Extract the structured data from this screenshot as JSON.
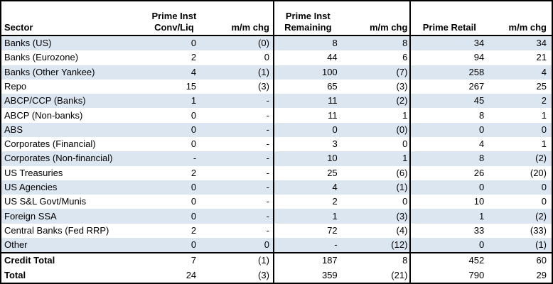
{
  "colors": {
    "stripe": "#DCE6F1",
    "border": "#000000",
    "background": "#FFFFFF"
  },
  "header": {
    "sector": "Sector",
    "group1": {
      "line1": "Prime Inst",
      "line2": "Conv/Liq"
    },
    "mm_chg": "m/m chg",
    "group2": {
      "line1": "Prime Inst",
      "line2": "Remaining"
    },
    "retail": "Prime Retail"
  },
  "chart_data": {
    "type": "table",
    "columns": [
      "Sector",
      "Prime Inst Conv/Liq",
      "m/m chg",
      "Prime Inst Remaining",
      "m/m chg",
      "Prime Retail",
      "m/m chg"
    ],
    "rows": [
      [
        "Banks (US)",
        "0",
        "(0)",
        "8",
        "8",
        "34",
        "34"
      ],
      [
        "Banks (Eurozone)",
        "2",
        "0",
        "44",
        "6",
        "94",
        "21"
      ],
      [
        "Banks (Other Yankee)",
        "4",
        "(1)",
        "100",
        "(7)",
        "258",
        "4"
      ],
      [
        "Repo",
        "15",
        "(3)",
        "65",
        "(3)",
        "267",
        "25"
      ],
      [
        "ABCP/CCP (Banks)",
        "1",
        "-",
        "11",
        "(2)",
        "45",
        "2"
      ],
      [
        "ABCP (Non-banks)",
        "0",
        "-",
        "11",
        "1",
        "8",
        "1"
      ],
      [
        "ABS",
        "0",
        "-",
        "0",
        "(0)",
        "0",
        "0"
      ],
      [
        "Corporates (Financial)",
        "0",
        "-",
        "3",
        "0",
        "4",
        "1"
      ],
      [
        "Corporates (Non-financial)",
        "-",
        "-",
        "10",
        "1",
        "8",
        "(2)"
      ],
      [
        "US Treasuries",
        "2",
        "-",
        "25",
        "(6)",
        "26",
        "(20)"
      ],
      [
        "US Agencies",
        "0",
        "-",
        "4",
        "(1)",
        "0",
        "0"
      ],
      [
        "US S&L Govt/Munis",
        "0",
        "-",
        "2",
        "0",
        "10",
        "0"
      ],
      [
        "Foreign SSA",
        "0",
        "-",
        "1",
        "(3)",
        "1",
        "(2)"
      ],
      [
        "Central Banks (Fed RRP)",
        "2",
        "-",
        "72",
        "(4)",
        "33",
        "(33)"
      ],
      [
        "Other",
        "0",
        "0",
        "-",
        "(12)",
        "0",
        "(1)"
      ]
    ],
    "total_rows": [
      [
        "Credit Total",
        "7",
        "(1)",
        "187",
        "8",
        "452",
        "60"
      ],
      [
        "Total",
        "24",
        "(3)",
        "359",
        "(21)",
        "790",
        "29"
      ]
    ]
  }
}
